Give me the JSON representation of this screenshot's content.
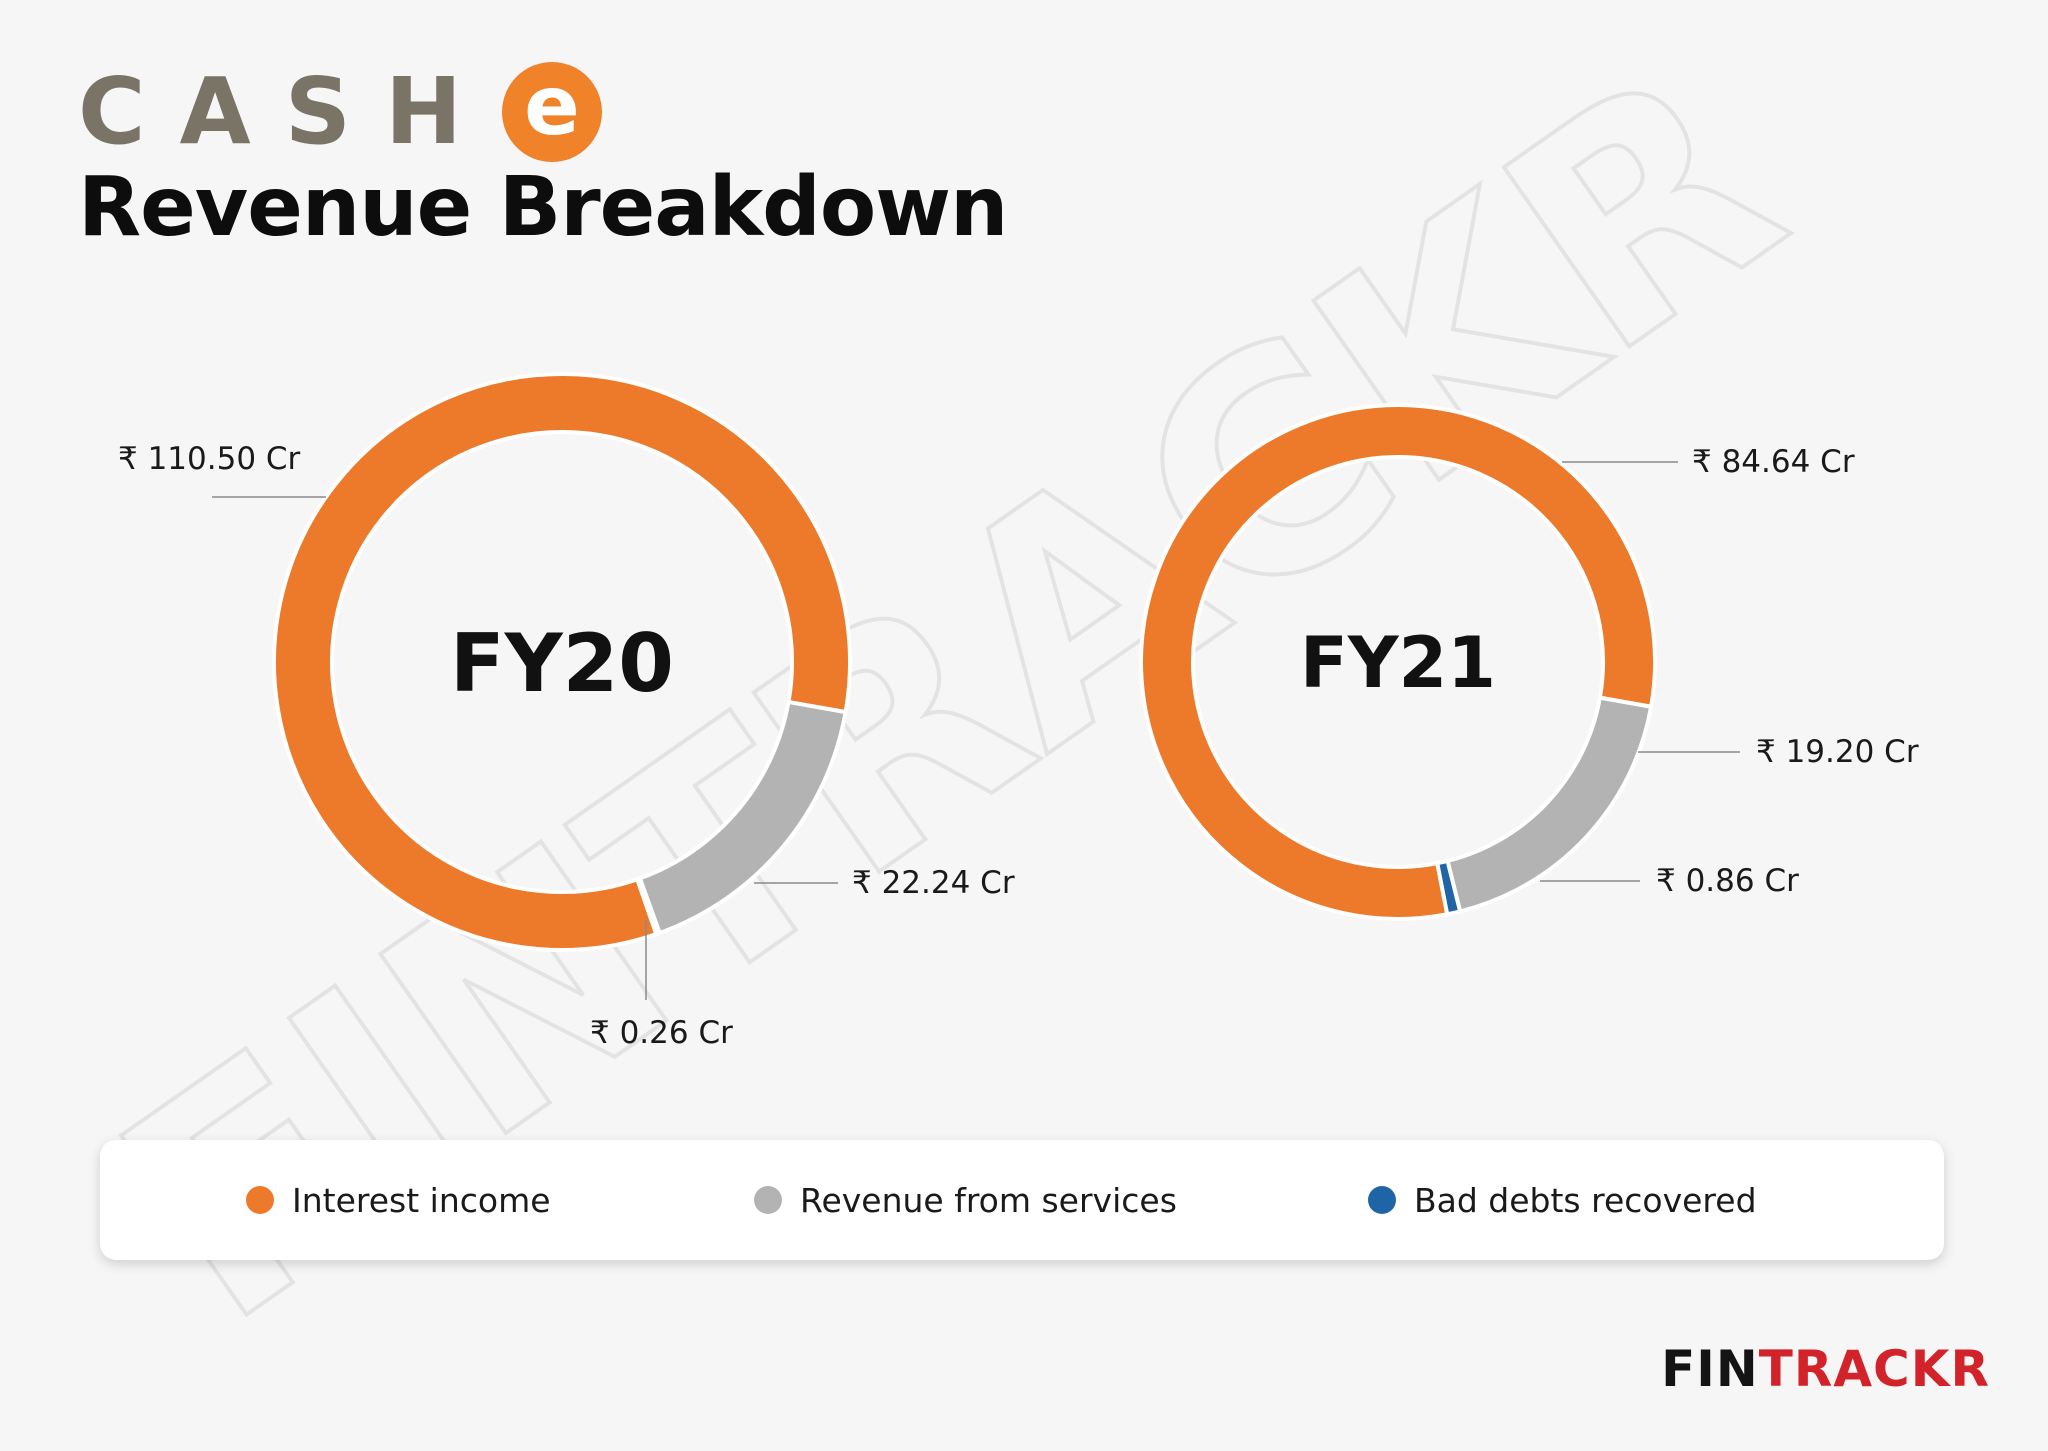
{
  "logo": {
    "text": "CASH",
    "badge_letter": "e",
    "text_color": "#7a7466",
    "badge_color": "#f0822a"
  },
  "title": "Revenue Breakdown",
  "colors": {
    "interest": "#ec7a2a",
    "services": "#b3b3b3",
    "bad_debts": "#1f65a6"
  },
  "chart_data": [
    {
      "type": "pie",
      "center_label": "FY20",
      "slices": [
        {
          "category": "Interest income",
          "value": 110.5,
          "label": "₹ 110.50 Cr"
        },
        {
          "category": "Revenue from services",
          "value": 22.24,
          "label": "₹ 22.24 Cr"
        },
        {
          "category": "Bad debts recovered",
          "value": 0.26,
          "label": "₹ 0.26 Cr"
        }
      ]
    },
    {
      "type": "pie",
      "center_label": "FY21",
      "slices": [
        {
          "category": "Interest income",
          "value": 84.64,
          "label": "₹ 84.64 Cr"
        },
        {
          "category": "Revenue from services",
          "value": 19.2,
          "label": "₹ 19.20 Cr"
        },
        {
          "category": "Bad debts recovered",
          "value": 0.86,
          "label": "₹ 0.86 Cr"
        }
      ]
    }
  ],
  "legend": [
    {
      "label": "Interest income",
      "color": "#ec7a2a"
    },
    {
      "label": "Revenue from services",
      "color": "#b3b3b3"
    },
    {
      "label": "Bad debts recovered",
      "color": "#1f65a6"
    }
  ],
  "brand": {
    "part1": "FIN",
    "part2": "TRACKR"
  }
}
